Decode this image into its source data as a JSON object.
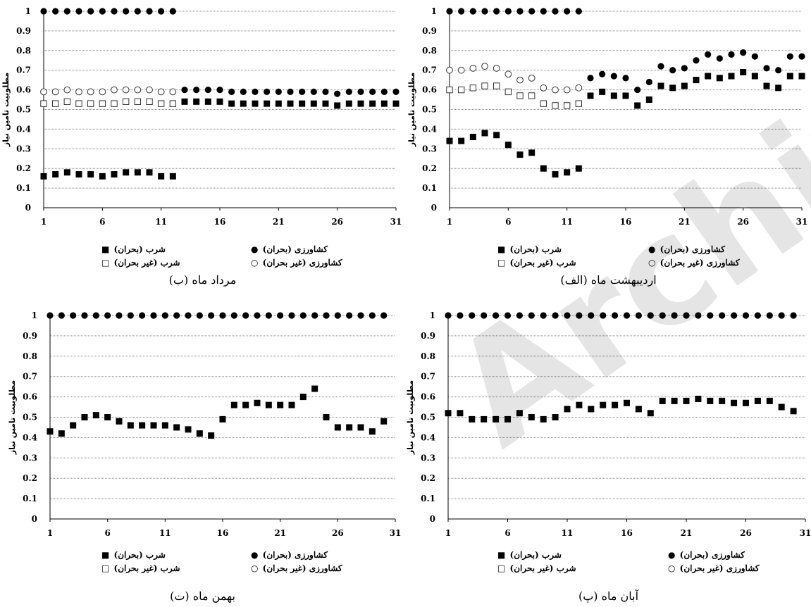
{
  "chart_data": [
    {
      "type": "scatter",
      "caption": "(ب) مرداد ماه",
      "ylabel": "مطلوبیت تامین نیاز",
      "xlim": [
        1,
        31
      ],
      "ylim": [
        0,
        1
      ],
      "xticks": [
        "1",
        "6",
        "11",
        "16",
        "21",
        "26",
        "31"
      ],
      "yticks": [
        "0",
        "0.1",
        "0.2",
        "0.3",
        "0.4",
        "0.5",
        "0.6",
        "0.7",
        "0.8",
        "0.9",
        "1"
      ],
      "grid": true,
      "series": [
        {
          "name": "کشاورزی (بحران)",
          "marker": "filled-circle",
          "x": [
            1,
            2,
            3,
            4,
            5,
            6,
            7,
            8,
            9,
            10,
            11,
            12,
            13,
            14,
            15,
            16,
            17,
            18,
            19,
            20,
            21,
            22,
            23,
            24,
            25,
            26,
            27,
            28,
            29,
            30,
            31
          ],
          "y": [
            1,
            1,
            1,
            1,
            1,
            1,
            1,
            1,
            1,
            1,
            1,
            1,
            0.6,
            0.6,
            0.6,
            0.6,
            0.59,
            0.59,
            0.59,
            0.59,
            0.59,
            0.59,
            0.59,
            0.59,
            0.59,
            0.58,
            0.59,
            0.59,
            0.59,
            0.59,
            0.59
          ]
        },
        {
          "name": "کشاورزی (غیر بحران)",
          "marker": "open-circle",
          "x": [
            1,
            2,
            3,
            4,
            5,
            6,
            7,
            8,
            9,
            10,
            11,
            12
          ],
          "y": [
            0.59,
            0.59,
            0.6,
            0.59,
            0.59,
            0.59,
            0.6,
            0.6,
            0.6,
            0.6,
            0.59,
            0.59
          ]
        },
        {
          "name": "شرب (بحران)",
          "marker": "filled-square",
          "x": [
            1,
            2,
            3,
            4,
            5,
            6,
            7,
            8,
            9,
            10,
            11,
            12,
            13,
            14,
            15,
            16,
            17,
            18,
            19,
            20,
            21,
            22,
            23,
            24,
            25,
            26,
            27,
            28,
            29,
            30,
            31
          ],
          "y": [
            0.16,
            0.17,
            0.18,
            0.17,
            0.17,
            0.16,
            0.17,
            0.18,
            0.18,
            0.18,
            0.16,
            0.16,
            0.54,
            0.54,
            0.54,
            0.54,
            0.53,
            0.53,
            0.53,
            0.53,
            0.53,
            0.53,
            0.53,
            0.53,
            0.53,
            0.52,
            0.53,
            0.53,
            0.53,
            0.53,
            0.53
          ]
        },
        {
          "name": "شرب (غیر بحران)",
          "marker": "open-square",
          "x": [
            1,
            2,
            3,
            4,
            5,
            6,
            7,
            8,
            9,
            10,
            11,
            12
          ],
          "y": [
            0.53,
            0.53,
            0.54,
            0.53,
            0.53,
            0.53,
            0.53,
            0.54,
            0.54,
            0.54,
            0.53,
            0.53
          ]
        }
      ]
    },
    {
      "type": "scatter",
      "caption": "(الف) اردیبهشت ماه",
      "ylabel": "مطلوبیت تامین نیاز",
      "xlim": [
        1,
        31
      ],
      "ylim": [
        0,
        1
      ],
      "xticks": [
        "1",
        "6",
        "11",
        "16",
        "21",
        "26",
        "31"
      ],
      "yticks": [
        "0",
        "0.1",
        "0.2",
        "0.3",
        "0.4",
        "0.5",
        "0.6",
        "0.7",
        "0.8",
        "0.9",
        "1"
      ],
      "grid": true,
      "series": [
        {
          "name": "کشاورزی (بحران)",
          "marker": "filled-circle",
          "x": [
            1,
            2,
            3,
            4,
            5,
            6,
            7,
            8,
            9,
            10,
            11,
            12,
            13,
            14,
            15,
            16,
            17,
            18,
            19,
            20,
            21,
            22,
            23,
            24,
            25,
            26,
            27,
            28,
            29,
            30,
            31
          ],
          "y": [
            1,
            1,
            1,
            1,
            1,
            1,
            1,
            1,
            1,
            1,
            1,
            1,
            0.66,
            0.68,
            0.67,
            0.66,
            0.6,
            0.64,
            0.72,
            0.7,
            0.71,
            0.75,
            0.78,
            0.76,
            0.78,
            0.79,
            0.77,
            0.71,
            0.7,
            0.77,
            0.77
          ]
        },
        {
          "name": "کشاورزی (غیر بحران)",
          "marker": "open-circle",
          "x": [
            1,
            2,
            3,
            4,
            5,
            6,
            7,
            8,
            9,
            10,
            11,
            12
          ],
          "y": [
            0.7,
            0.7,
            0.71,
            0.72,
            0.71,
            0.68,
            0.65,
            0.66,
            0.61,
            0.6,
            0.6,
            0.61
          ]
        },
        {
          "name": "شرب (بحران)",
          "marker": "filled-square",
          "x": [
            1,
            2,
            3,
            4,
            5,
            6,
            7,
            8,
            9,
            10,
            11,
            12,
            13,
            14,
            15,
            16,
            17,
            18,
            19,
            20,
            21,
            22,
            23,
            24,
            25,
            26,
            27,
            28,
            29,
            30,
            31
          ],
          "y": [
            0.34,
            0.34,
            0.36,
            0.38,
            0.37,
            0.32,
            0.27,
            0.28,
            0.2,
            0.17,
            0.18,
            0.2,
            0.57,
            0.59,
            0.57,
            0.57,
            0.52,
            0.55,
            0.62,
            0.61,
            0.62,
            0.65,
            0.67,
            0.66,
            0.67,
            0.69,
            0.67,
            0.62,
            0.61,
            0.67,
            0.67
          ]
        },
        {
          "name": "شرب (غیر بحران)",
          "marker": "open-square",
          "x": [
            1,
            2,
            3,
            4,
            5,
            6,
            7,
            8,
            9,
            10,
            11,
            12
          ],
          "y": [
            0.6,
            0.6,
            0.61,
            0.62,
            0.62,
            0.59,
            0.57,
            0.57,
            0.53,
            0.52,
            0.52,
            0.53
          ]
        }
      ]
    },
    {
      "type": "scatter",
      "caption": "(ت) بهمن ماه",
      "ylabel": "مطلوبیت تامین نیاز",
      "xlim": [
        1,
        31
      ],
      "ylim": [
        0,
        1
      ],
      "xticks": [
        "1",
        "6",
        "11",
        "16",
        "21",
        "26",
        "31"
      ],
      "yticks": [
        "0",
        "0.1",
        "0.2",
        "0.3",
        "0.4",
        "0.5",
        "0.6",
        "0.7",
        "0.8",
        "0.9",
        "1"
      ],
      "grid": true,
      "series": [
        {
          "name": "کشاورزی (بحران)",
          "marker": "filled-circle",
          "x": [
            1,
            2,
            3,
            4,
            5,
            6,
            7,
            8,
            9,
            10,
            11,
            12,
            13,
            14,
            15,
            16,
            17,
            18,
            19,
            20,
            21,
            22,
            23,
            24,
            25,
            26,
            27,
            28,
            29,
            30
          ],
          "y": [
            1,
            1,
            1,
            1,
            1,
            1,
            1,
            1,
            1,
            1,
            1,
            1,
            1,
            1,
            1,
            1,
            1,
            1,
            1,
            1,
            1,
            1,
            1,
            1,
            1,
            1,
            1,
            1,
            1,
            1
          ]
        },
        {
          "name": "شرب (بحران)",
          "marker": "filled-square",
          "x": [
            1,
            2,
            3,
            4,
            5,
            6,
            7,
            8,
            9,
            10,
            11,
            12,
            13,
            14,
            15,
            16,
            17,
            18,
            19,
            20,
            21,
            22,
            23,
            24,
            25,
            26,
            27,
            28,
            29,
            30
          ],
          "y": [
            0.43,
            0.42,
            0.46,
            0.5,
            0.51,
            0.5,
            0.48,
            0.46,
            0.46,
            0.46,
            0.46,
            0.45,
            0.44,
            0.42,
            0.41,
            0.49,
            0.56,
            0.56,
            0.57,
            0.56,
            0.56,
            0.56,
            0.6,
            0.64,
            0.5,
            0.45,
            0.45,
            0.45,
            0.43,
            0.48
          ]
        }
      ]
    },
    {
      "type": "scatter",
      "caption": "(پ) آبان ماه",
      "ylabel": "مطلوبیت تامین نیاز",
      "xlim": [
        1,
        31
      ],
      "ylim": [
        0,
        1
      ],
      "xticks": [
        "1",
        "6",
        "11",
        "16",
        "21",
        "26",
        "31"
      ],
      "yticks": [
        "0",
        "0.1",
        "0.2",
        "0.3",
        "0.4",
        "0.5",
        "0.6",
        "0.7",
        "0.8",
        "0.9",
        "1"
      ],
      "grid": true,
      "series": [
        {
          "name": "کشاورزی (بحران)",
          "marker": "filled-circle",
          "x": [
            1,
            2,
            3,
            4,
            5,
            6,
            7,
            8,
            9,
            10,
            11,
            12,
            13,
            14,
            15,
            16,
            17,
            18,
            19,
            20,
            21,
            22,
            23,
            24,
            25,
            26,
            27,
            28,
            29,
            30
          ],
          "y": [
            1,
            1,
            1,
            1,
            1,
            1,
            1,
            1,
            1,
            1,
            1,
            1,
            1,
            1,
            1,
            1,
            1,
            1,
            1,
            1,
            1,
            1,
            1,
            1,
            1,
            1,
            1,
            1,
            1,
            1
          ]
        },
        {
          "name": "شرب (بحران)",
          "marker": "filled-square",
          "x": [
            1,
            2,
            3,
            4,
            5,
            6,
            7,
            8,
            9,
            10,
            11,
            12,
            13,
            14,
            15,
            16,
            17,
            18,
            19,
            20,
            21,
            22,
            23,
            24,
            25,
            26,
            27,
            28,
            29,
            30
          ],
          "y": [
            0.52,
            0.52,
            0.49,
            0.49,
            0.49,
            0.49,
            0.52,
            0.5,
            0.49,
            0.5,
            0.54,
            0.56,
            0.54,
            0.56,
            0.56,
            0.57,
            0.54,
            0.52,
            0.58,
            0.58,
            0.58,
            0.59,
            0.58,
            0.58,
            0.57,
            0.57,
            0.58,
            0.58,
            0.55,
            0.53
          ]
        }
      ]
    }
  ],
  "legend_labels": {
    "agri_crisis": "کشاورزی (بحران)",
    "agri_noncrisis": "کشاورزی (غیر بحران)",
    "drink_crisis": "شرب (بحران)",
    "drink_noncrisis": "شرب (غیر بحران)"
  },
  "legend_symbols": {
    "filled_circle": "●",
    "open_circle": "○",
    "filled_square": "■",
    "open_square": "□"
  },
  "watermark": "Archive of SID"
}
